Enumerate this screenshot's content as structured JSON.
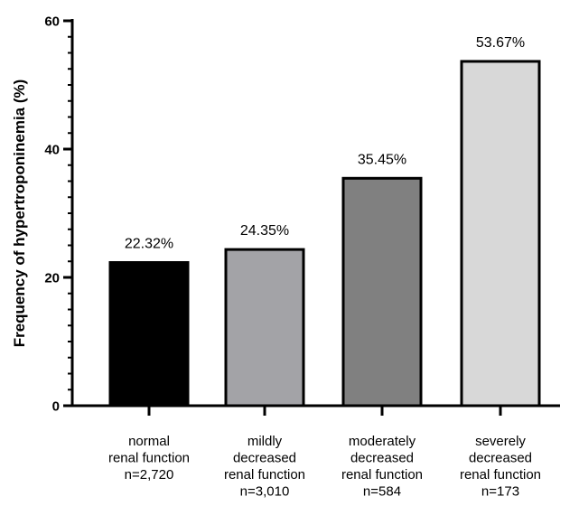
{
  "chart_data": {
    "type": "bar",
    "ylabel": "Frequency of hypertroponinemia (%)",
    "ylim": [
      0,
      60
    ],
    "yticks": [
      0,
      20,
      40,
      60
    ],
    "grid": false,
    "categories": [
      {
        "lines": [
          "normal",
          "renal function",
          "n=2,720"
        ]
      },
      {
        "lines": [
          "mildly",
          "decreased",
          "renal function",
          "n=3,010"
        ]
      },
      {
        "lines": [
          "moderately",
          "decreased",
          "renal function",
          "n=584"
        ]
      },
      {
        "lines": [
          "severely",
          "decreased",
          "renal function",
          "n=173"
        ]
      }
    ],
    "values": [
      22.32,
      24.35,
      35.45,
      53.67
    ],
    "data_labels": [
      "22.32%",
      "24.35%",
      "35.45%",
      "53.67%"
    ],
    "colors": [
      "#000000",
      "#a3a3a7",
      "#808080",
      "#d8d8d8"
    ]
  }
}
